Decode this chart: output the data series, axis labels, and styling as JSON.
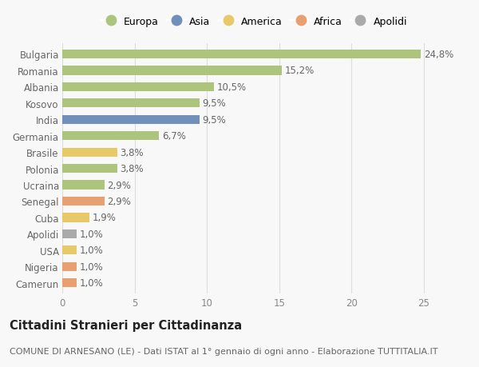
{
  "categories": [
    "Bulgaria",
    "Romania",
    "Albania",
    "Kosovo",
    "India",
    "Germania",
    "Brasile",
    "Polonia",
    "Ucraina",
    "Senegal",
    "Cuba",
    "Apolidi",
    "USA",
    "Nigeria",
    "Camerun"
  ],
  "values": [
    24.8,
    15.2,
    10.5,
    9.5,
    9.5,
    6.7,
    3.8,
    3.8,
    2.9,
    2.9,
    1.9,
    1.0,
    1.0,
    1.0,
    1.0
  ],
  "labels": [
    "24,8%",
    "15,2%",
    "10,5%",
    "9,5%",
    "9,5%",
    "6,7%",
    "3,8%",
    "3,8%",
    "2,9%",
    "2,9%",
    "1,9%",
    "1,0%",
    "1,0%",
    "1,0%",
    "1,0%"
  ],
  "continents": [
    "Europa",
    "Europa",
    "Europa",
    "Europa",
    "Asia",
    "Europa",
    "America",
    "Europa",
    "Europa",
    "Africa",
    "America",
    "Apolidi",
    "America",
    "Africa",
    "Africa"
  ],
  "continent_colors": {
    "Europa": "#adc47d",
    "Asia": "#7090bb",
    "America": "#e8c96a",
    "Africa": "#e8a070",
    "Apolidi": "#aaaaaa"
  },
  "legend_order": [
    "Europa",
    "Asia",
    "America",
    "Africa",
    "Apolidi"
  ],
  "xlim": [
    0,
    26.5
  ],
  "xticks": [
    0,
    5,
    10,
    15,
    20,
    25
  ],
  "title": "Cittadini Stranieri per Cittadinanza",
  "subtitle": "COMUNE DI ARNESANO (LE) - Dati ISTAT al 1° gennaio di ogni anno - Elaborazione TUTTITALIA.IT",
  "background_color": "#f8f8f8",
  "bar_height": 0.55,
  "label_fontsize": 8.5,
  "title_fontsize": 10.5,
  "subtitle_fontsize": 8,
  "tick_fontsize": 8.5,
  "ytick_fontsize": 8.5,
  "legend_fontsize": 9
}
